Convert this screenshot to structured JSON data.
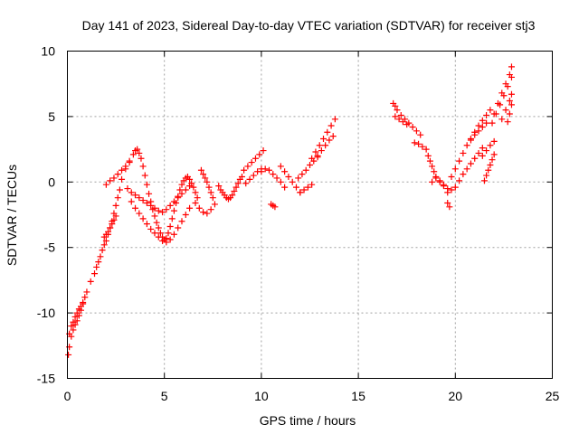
{
  "chart_data": {
    "type": "scatter",
    "title": "Day 141 of 2023, Sidereal Day-to-day VTEC variation (SDTVAR) for receiver stj3",
    "xlabel": "GPS time / hours",
    "ylabel": "SDTVAR / TECUs",
    "xlim": [
      0,
      25
    ],
    "ylim": [
      -15,
      10
    ],
    "x_ticks": [
      0,
      5,
      10,
      15,
      20,
      25
    ],
    "y_ticks": [
      -15,
      -10,
      -5,
      0,
      5,
      10
    ],
    "x_tick_labels": [
      "0",
      "5",
      "10",
      "15",
      "20",
      "25"
    ],
    "y_tick_labels": [
      "-15",
      "-10",
      "-5",
      "0",
      "5",
      "10"
    ],
    "grid": true,
    "marker": "+",
    "color": "#ff0000",
    "series": [
      {
        "name": "SDTVAR",
        "segments": [
          {
            "x": [
              0.05,
              0.1,
              0.2,
              0.3,
              0.4,
              0.5,
              0.6,
              0.7,
              0.8,
              0.9,
              1.0,
              1.2,
              1.4,
              1.5,
              1.6,
              1.7,
              1.8,
              1.9,
              2.0,
              2.1,
              2.2,
              2.3,
              2.4,
              2.5,
              2.6,
              2.7,
              2.8,
              3.0,
              3.2,
              3.4,
              3.5,
              3.6,
              3.7,
              3.8,
              3.9,
              4.0,
              4.1,
              4.2,
              4.3,
              4.4,
              4.5,
              4.6,
              4.7,
              4.8,
              4.9,
              5.0,
              5.1,
              5.2,
              5.3,
              5.4,
              5.5,
              5.6,
              5.7,
              5.8,
              5.9,
              6.0,
              6.1,
              6.2,
              6.3,
              6.4,
              6.5,
              6.6,
              6.7
            ],
            "y": [
              -13.2,
              -12.6,
              -11.8,
              -11.3,
              -10.9,
              -10.6,
              -10.2,
              -9.8,
              -9.3,
              -8.8,
              -8.4,
              -7.6,
              -7.0,
              -6.5,
              -6.1,
              -5.7,
              -5.2,
              -4.8,
              -4.5,
              -4.0,
              -3.5,
              -3.0,
              -2.4,
              -1.8,
              -1.2,
              -0.6,
              0.2,
              1.0,
              1.6,
              2.1,
              2.4,
              2.5,
              2.2,
              1.8,
              1.2,
              0.5,
              -0.2,
              -0.9,
              -1.5,
              -2.1,
              -2.6,
              -3.1,
              -3.5,
              -3.9,
              -4.2,
              -4.4,
              -4.3,
              -3.9,
              -3.4,
              -2.8,
              -2.2,
              -1.6,
              -1.1,
              -0.6,
              -0.2,
              0.1,
              0.3,
              0.4,
              0.2,
              -0.1,
              -0.4,
              -0.8,
              -1.2
            ]
          },
          {
            "x": [
              0.1,
              0.2,
              0.3,
              0.4,
              0.5,
              0.6,
              0.7,
              0.8
            ],
            "y": [
              -11.6,
              -11.0,
              -10.7,
              -10.3,
              -10.0,
              -9.7,
              -9.5,
              -9.2
            ]
          },
          {
            "x": [
              1.9,
              2.0,
              2.1,
              2.2,
              2.3,
              2.4,
              2.5
            ],
            "y": [
              -4.2,
              -4.0,
              -3.8,
              -3.5,
              -3.2,
              -2.9,
              -2.6
            ]
          },
          {
            "x": [
              3.1,
              3.3,
              3.5,
              3.7,
              3.9,
              4.1,
              4.3,
              4.5,
              4.7,
              4.9,
              5.1,
              5.3,
              5.5,
              5.7,
              5.9,
              6.1,
              6.3
            ],
            "y": [
              -0.5,
              -0.8,
              -1.0,
              -1.2,
              -1.4,
              -1.6,
              -1.8,
              -2.0,
              -2.2,
              -2.3,
              -2.1,
              -1.8,
              -1.5,
              -1.2,
              -0.9,
              -0.6,
              -0.3
            ]
          },
          {
            "x": [
              3.3,
              3.5,
              3.7,
              3.9,
              4.1,
              4.3,
              4.5,
              4.7,
              4.9,
              5.1,
              5.3,
              5.5,
              5.7,
              5.9,
              6.1,
              6.3
            ],
            "y": [
              -1.5,
              -2.0,
              -2.4,
              -2.8,
              -3.2,
              -3.6,
              -3.9,
              -4.2,
              -4.5,
              -4.6,
              -4.4,
              -4.0,
              -3.5,
              -3.0,
              -2.5,
              -2.0
            ]
          },
          {
            "x": [
              2.0,
              2.2,
              2.4,
              2.6,
              2.8,
              3.0,
              3.2
            ],
            "y": [
              -0.2,
              0.1,
              0.3,
              0.6,
              0.9,
              1.2,
              1.5
            ]
          },
          {
            "x": [
              6.6,
              6.8,
              7.0,
              7.2,
              7.4,
              7.6
            ],
            "y": [
              -1.6,
              -2.0,
              -2.3,
              -2.4,
              -2.1,
              -1.7
            ]
          },
          {
            "x": [
              6.9,
              7.0,
              7.1,
              7.2,
              7.3,
              7.4,
              7.5
            ],
            "y": [
              0.9,
              0.6,
              0.3,
              0.0,
              -0.4,
              -0.8,
              -1.2
            ]
          },
          {
            "x": [
              7.8,
              7.9,
              8.0,
              8.1,
              8.2,
              8.3,
              8.4,
              8.5,
              8.6,
              8.7,
              8.8,
              8.9,
              9.0
            ],
            "y": [
              -0.3,
              -0.6,
              -0.8,
              -1.0,
              -1.2,
              -1.3,
              -1.2,
              -1.0,
              -0.7,
              -0.4,
              -0.1,
              0.2,
              0.4
            ]
          },
          {
            "x": [
              9.1,
              9.3,
              9.5,
              9.7,
              9.9,
              10.1
            ],
            "y": [
              0.9,
              1.2,
              1.5,
              1.8,
              2.1,
              2.4
            ]
          },
          {
            "x": [
              9.2,
              9.4,
              9.6,
              9.8,
              10.0
            ],
            "y": [
              -0.1,
              0.2,
              0.5,
              0.8,
              1.0
            ]
          },
          {
            "x": [
              10.0,
              10.2,
              10.4,
              10.6,
              10.8,
              11.0,
              11.2
            ],
            "y": [
              0.8,
              1.0,
              0.9,
              0.6,
              0.3,
              0.0,
              -0.4
            ]
          },
          {
            "x": [
              10.5,
              10.6,
              10.7
            ],
            "y": [
              -1.7,
              -1.8,
              -1.9
            ]
          },
          {
            "x": [
              11.0,
              11.2,
              11.4,
              11.6,
              11.8,
              12.0
            ],
            "y": [
              1.2,
              0.8,
              0.4,
              0.0,
              -0.4,
              -0.8
            ]
          },
          {
            "x": [
              11.9,
              12.1,
              12.3,
              12.5,
              12.7,
              12.9
            ],
            "y": [
              0.3,
              0.6,
              0.9,
              1.3,
              1.6,
              1.9
            ]
          },
          {
            "x": [
              12.0,
              12.2,
              12.4,
              12.6
            ],
            "y": [
              -0.8,
              -0.6,
              -0.4,
              -0.2
            ]
          },
          {
            "x": [
              12.6,
              12.8,
              13.0,
              13.2,
              13.4,
              13.6,
              13.8
            ],
            "y": [
              1.8,
              2.3,
              2.8,
              3.3,
              3.8,
              4.3,
              4.8
            ]
          },
          {
            "x": [
              12.9,
              13.1,
              13.3,
              13.5,
              13.7
            ],
            "y": [
              2.0,
              2.4,
              2.8,
              3.2,
              3.5
            ]
          },
          {
            "x": [
              16.8,
              16.9,
              17.0,
              17.2,
              17.4,
              17.6,
              17.8,
              18.0,
              18.2
            ],
            "y": [
              6.0,
              5.8,
              5.5,
              5.1,
              4.8,
              4.5,
              4.2,
              3.9,
              3.6
            ]
          },
          {
            "x": [
              16.9,
              17.1,
              17.3,
              17.5
            ],
            "y": [
              5.0,
              4.8,
              4.6,
              4.4
            ]
          },
          {
            "x": [
              17.9,
              18.1,
              18.3
            ],
            "y": [
              3.0,
              2.9,
              2.7
            ]
          },
          {
            "x": [
              18.5,
              18.6,
              18.7,
              18.8,
              18.9,
              19.0,
              19.2,
              19.4,
              19.6,
              19.8
            ],
            "y": [
              2.5,
              2.0,
              1.6,
              1.2,
              0.8,
              0.4,
              0.0,
              -0.3,
              -0.5,
              -0.6
            ]
          },
          {
            "x": [
              18.8,
              19.0,
              19.2,
              19.4,
              19.6
            ],
            "y": [
              0.0,
              0.3,
              0.1,
              -0.2,
              -0.8
            ]
          },
          {
            "x": [
              19.6,
              19.7
            ],
            "y": [
              -1.6,
              -1.9
            ]
          },
          {
            "x": [
              19.8,
              20.0,
              20.2,
              20.4,
              20.6,
              20.8,
              21.0,
              21.2,
              21.4,
              21.6,
              21.8
            ],
            "y": [
              0.4,
              1.0,
              1.6,
              2.2,
              2.8,
              3.3,
              3.8,
              4.3,
              4.7,
              5.1,
              5.5
            ]
          },
          {
            "x": [
              20.0,
              20.2,
              20.4,
              20.6,
              20.8,
              21.0,
              21.2,
              21.4
            ],
            "y": [
              -0.4,
              0.1,
              0.6,
              1.0,
              1.4,
              1.8,
              2.2,
              2.6
            ]
          },
          {
            "x": [
              20.8,
              21.0,
              21.2,
              21.4,
              21.6
            ],
            "y": [
              3.2,
              3.6,
              3.9,
              4.2,
              4.5
            ]
          },
          {
            "x": [
              21.4,
              21.6,
              21.8,
              22.0
            ],
            "y": [
              2.0,
              2.4,
              2.8,
              3.1
            ]
          },
          {
            "x": [
              21.5,
              21.6,
              21.7,
              21.8,
              21.9,
              22.0
            ],
            "y": [
              0.1,
              0.5,
              0.9,
              1.3,
              1.7,
              2.1
            ]
          },
          {
            "x": [
              21.9,
              22.1,
              22.3,
              22.5,
              22.7,
              22.9
            ],
            "y": [
              4.5,
              5.2,
              5.9,
              6.6,
              7.3,
              8.0
            ]
          },
          {
            "x": [
              22.0,
              22.2,
              22.4,
              22.6,
              22.8,
              22.9
            ],
            "y": [
              5.2,
              6.0,
              6.8,
              7.5,
              8.2,
              8.8
            ]
          },
          {
            "x": [
              22.4,
              22.6,
              22.8,
              22.9
            ],
            "y": [
              4.8,
              5.5,
              6.2,
              6.7
            ]
          },
          {
            "x": [
              22.7,
              22.8,
              22.9
            ],
            "y": [
              4.6,
              5.2,
              5.9
            ]
          }
        ]
      }
    ]
  }
}
